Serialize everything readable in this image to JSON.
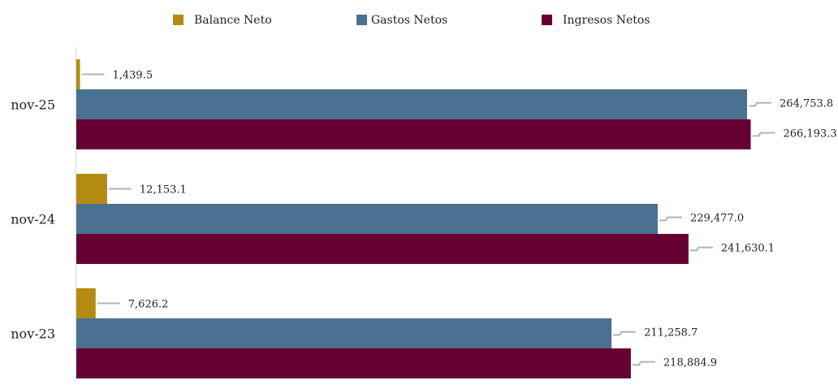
{
  "chart_data": {
    "type": "bar",
    "orientation": "horizontal",
    "categories": [
      "nov-25",
      "nov-24",
      "nov-23"
    ],
    "series": [
      {
        "name": "Balance Neto",
        "color": "#b38b13",
        "values": [
          1439.5,
          12153.1,
          7626.2
        ],
        "labels": [
          "1,439.5",
          "12,153.1",
          "7,626.2"
        ]
      },
      {
        "name": "Gastos Netos",
        "color": "#4b7191",
        "values": [
          264753.8,
          229477.0,
          211258.7
        ],
        "labels": [
          "264,753.8",
          "229,477.0",
          "211,258.7"
        ]
      },
      {
        "name": "Ingresos Netos",
        "color": "#660033",
        "values": [
          266193.3,
          241630.1,
          218884.9
        ],
        "labels": [
          "266,193.3",
          "241,630.1",
          "218,884.9"
        ]
      }
    ],
    "xlim": [
      0,
      275000
    ],
    "grid": false,
    "legend_position": "top"
  }
}
